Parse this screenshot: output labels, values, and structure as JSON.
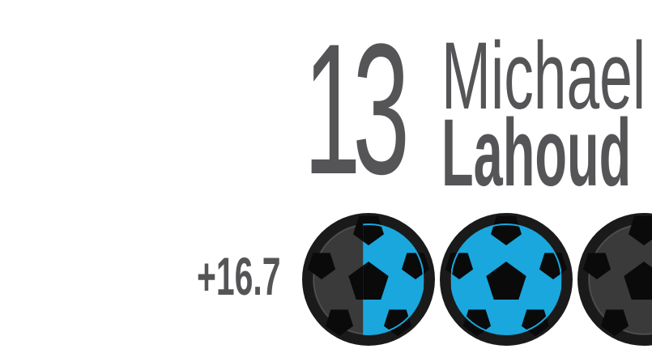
{
  "player": {
    "number": "13",
    "first_name": "Michael",
    "last_name": "Lahoud",
    "score_change": "+16.7"
  },
  "rating": {
    "icon": "soccer-ball-icon",
    "fills": [
      0.55,
      1.0,
      0.0
    ]
  },
  "colors": {
    "text": "#555558",
    "ball_fill": "#1aa7de",
    "ball_empty": "#3a3a3a",
    "ball_ring": "#1a1a1a",
    "patch": "#0a0a0a"
  }
}
